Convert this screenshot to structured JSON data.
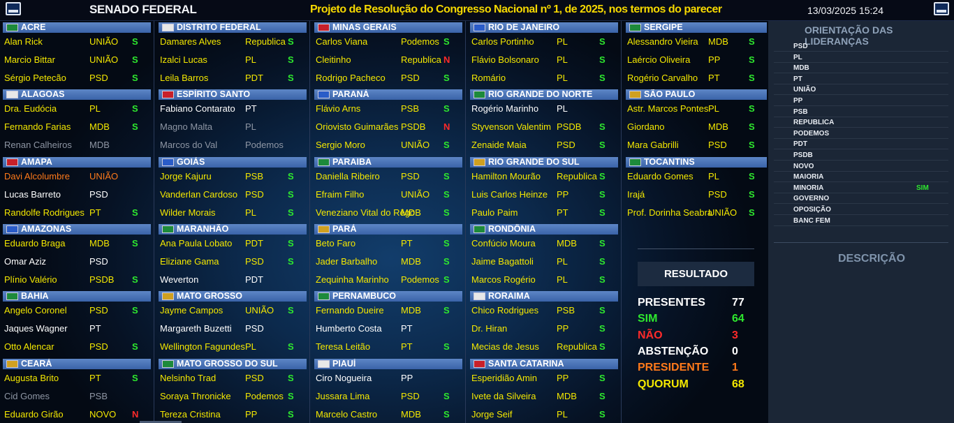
{
  "header": {
    "title_left": "SENADO FEDERAL",
    "title_center": "Projeto de Resolução do Congresso Nacional nº 1, de 2025, nos termos do parecer",
    "datetime": "13/03/2025 15:24"
  },
  "colors": {
    "yes": "#f4e800",
    "no_vote": "#ffffff",
    "absent": "#8e96a4",
    "president": "#ff7a1a",
    "vote_sim": "#2ee82e",
    "vote_nao": "#ff2a2a"
  },
  "columns": [
    {
      "blocks": [
        {
          "state": "ACRE",
          "senators": [
            {
              "name": "Alan Rick",
              "party": "UNIÃO",
              "vote": "S",
              "status": "yes"
            },
            {
              "name": "Marcio Bittar",
              "party": "UNIÃO",
              "vote": "S",
              "status": "yes"
            },
            {
              "name": "Sérgio Petecão",
              "party": "PSD",
              "vote": "S",
              "status": "yes"
            }
          ]
        },
        {
          "state": "ALAGOAS",
          "senators": [
            {
              "name": "Dra. Eudócia",
              "party": "PL",
              "vote": "S",
              "status": "yes"
            },
            {
              "name": "Fernando Farias",
              "party": "MDB",
              "vote": "S",
              "status": "yes"
            },
            {
              "name": "Renan Calheiros",
              "party": "MDB",
              "vote": "",
              "status": "absent"
            }
          ]
        },
        {
          "state": "AMAPA",
          "senators": [
            {
              "name": "Davi Alcolumbre",
              "party": "UNIÃO",
              "vote": "",
              "status": "president"
            },
            {
              "name": "Lucas Barreto",
              "party": "PSD",
              "vote": "",
              "status": "white"
            },
            {
              "name": "Randolfe Rodrigues",
              "party": "PT",
              "vote": "S",
              "status": "yes"
            }
          ]
        },
        {
          "state": "AMAZONAS",
          "senators": [
            {
              "name": "Eduardo Braga",
              "party": "MDB",
              "vote": "S",
              "status": "yes"
            },
            {
              "name": "Omar Aziz",
              "party": "PSD",
              "vote": "",
              "status": "white"
            },
            {
              "name": "Plínio Valério",
              "party": "PSDB",
              "vote": "S",
              "status": "yes"
            }
          ]
        },
        {
          "state": "BAHIA",
          "senators": [
            {
              "name": "Angelo Coronel",
              "party": "PSD",
              "vote": "S",
              "status": "yes"
            },
            {
              "name": "Jaques Wagner",
              "party": "PT",
              "vote": "",
              "status": "white"
            },
            {
              "name": "Otto Alencar",
              "party": "PSD",
              "vote": "S",
              "status": "yes"
            }
          ]
        },
        {
          "state": "CEARÁ",
          "senators": [
            {
              "name": "Augusta Brito",
              "party": "PT",
              "vote": "S",
              "status": "yes"
            },
            {
              "name": "Cid Gomes",
              "party": "PSB",
              "vote": "",
              "status": "absent"
            },
            {
              "name": "Eduardo Girão",
              "party": "NOVO",
              "vote": "N",
              "status": "yes"
            }
          ]
        }
      ]
    },
    {
      "blocks": [
        {
          "state": "DISTRITO FEDERAL",
          "senators": [
            {
              "name": "Damares Alves",
              "party": "Republica",
              "vote": "S",
              "status": "yes"
            },
            {
              "name": "Izalci Lucas",
              "party": "PL",
              "vote": "S",
              "status": "yes"
            },
            {
              "name": "Leila Barros",
              "party": "PDT",
              "vote": "S",
              "status": "yes"
            }
          ]
        },
        {
          "state": "ESPÍRITO SANTO",
          "senators": [
            {
              "name": "Fabiano Contarato",
              "party": "PT",
              "vote": "",
              "status": "white"
            },
            {
              "name": "Magno Malta",
              "party": "PL",
              "vote": "",
              "status": "absent"
            },
            {
              "name": "Marcos do Val",
              "party": "Podemos",
              "vote": "",
              "status": "absent"
            }
          ]
        },
        {
          "state": "GOIÁS",
          "senators": [
            {
              "name": "Jorge Kajuru",
              "party": "PSB",
              "vote": "S",
              "status": "yes"
            },
            {
              "name": "Vanderlan Cardoso",
              "party": "PSD",
              "vote": "S",
              "status": "yes"
            },
            {
              "name": "Wilder Morais",
              "party": "PL",
              "vote": "S",
              "status": "yes"
            }
          ]
        },
        {
          "state": "MARANHÃO",
          "senators": [
            {
              "name": "Ana Paula Lobato",
              "party": "PDT",
              "vote": "S",
              "status": "yes"
            },
            {
              "name": "Eliziane Gama",
              "party": "PSD",
              "vote": "S",
              "status": "yes"
            },
            {
              "name": "Weverton",
              "party": "PDT",
              "vote": "",
              "status": "white"
            }
          ]
        },
        {
          "state": "MATO GROSSO",
          "senators": [
            {
              "name": "Jayme Campos",
              "party": "UNIÃO",
              "vote": "S",
              "status": "yes"
            },
            {
              "name": "Margareth Buzetti",
              "party": "PSD",
              "vote": "",
              "status": "white"
            },
            {
              "name": "Wellington Fagundes",
              "party": "PL",
              "vote": "S",
              "status": "yes"
            }
          ]
        },
        {
          "state": "MATO GROSSO DO SUL",
          "senators": [
            {
              "name": "Nelsinho Trad",
              "party": "PSD",
              "vote": "S",
              "status": "yes"
            },
            {
              "name": "Soraya Thronicke",
              "party": "Podemos",
              "vote": "S",
              "status": "yes"
            },
            {
              "name": "Tereza Cristina",
              "party": "PP",
              "vote": "S",
              "status": "yes"
            }
          ]
        }
      ]
    },
    {
      "blocks": [
        {
          "state": "MINAS GERAIS",
          "senators": [
            {
              "name": "Carlos Viana",
              "party": "Podemos",
              "vote": "S",
              "status": "yes"
            },
            {
              "name": "Cleitinho",
              "party": "Republica",
              "vote": "N",
              "status": "yes"
            },
            {
              "name": "Rodrigo Pacheco",
              "party": "PSD",
              "vote": "S",
              "status": "yes"
            }
          ]
        },
        {
          "state": "PARANÁ",
          "senators": [
            {
              "name": "Flávio Arns",
              "party": "PSB",
              "vote": "S",
              "status": "yes"
            },
            {
              "name": "Oriovisto Guimarães",
              "party": "PSDB",
              "vote": "N",
              "status": "yes"
            },
            {
              "name": "Sergio Moro",
              "party": "UNIÃO",
              "vote": "S",
              "status": "yes"
            }
          ]
        },
        {
          "state": "PARAIBA",
          "senators": [
            {
              "name": "Daniella Ribeiro",
              "party": "PSD",
              "vote": "S",
              "status": "yes"
            },
            {
              "name": "Efraim Filho",
              "party": "UNIÃO",
              "vote": "S",
              "status": "yes"
            },
            {
              "name": "Veneziano Vital do Rêgo",
              "party": "MDB",
              "vote": "S",
              "status": "yes"
            }
          ]
        },
        {
          "state": "PARÁ",
          "senators": [
            {
              "name": "Beto Faro",
              "party": "PT",
              "vote": "S",
              "status": "yes"
            },
            {
              "name": "Jader Barbalho",
              "party": "MDB",
              "vote": "S",
              "status": "yes"
            },
            {
              "name": "Zequinha Marinho",
              "party": "Podemos",
              "vote": "S",
              "status": "yes"
            }
          ]
        },
        {
          "state": "PERNAMBUCO",
          "senators": [
            {
              "name": "Fernando Dueire",
              "party": "MDB",
              "vote": "S",
              "status": "yes"
            },
            {
              "name": "Humberto Costa",
              "party": "PT",
              "vote": "",
              "status": "white"
            },
            {
              "name": "Teresa Leitão",
              "party": "PT",
              "vote": "S",
              "status": "yes"
            }
          ]
        },
        {
          "state": "PIAUÍ",
          "senators": [
            {
              "name": "Ciro Nogueira",
              "party": "PP",
              "vote": "",
              "status": "white"
            },
            {
              "name": "Jussara Lima",
              "party": "PSD",
              "vote": "S",
              "status": "yes"
            },
            {
              "name": "Marcelo Castro",
              "party": "MDB",
              "vote": "S",
              "status": "yes"
            }
          ]
        }
      ]
    },
    {
      "blocks": [
        {
          "state": "RIO DE JANEIRO",
          "senators": [
            {
              "name": "Carlos Portinho",
              "party": "PL",
              "vote": "S",
              "status": "yes"
            },
            {
              "name": "Flávio Bolsonaro",
              "party": "PL",
              "vote": "S",
              "status": "yes"
            },
            {
              "name": "Romário",
              "party": "PL",
              "vote": "S",
              "status": "yes"
            }
          ]
        },
        {
          "state": "RIO GRANDE DO NORTE",
          "senators": [
            {
              "name": "Rogério Marinho",
              "party": "PL",
              "vote": "",
              "status": "white"
            },
            {
              "name": "Styvenson Valentim",
              "party": "PSDB",
              "vote": "S",
              "status": "yes"
            },
            {
              "name": "Zenaide Maia",
              "party": "PSD",
              "vote": "S",
              "status": "yes"
            }
          ]
        },
        {
          "state": "RIO GRANDE DO SUL",
          "senators": [
            {
              "name": "Hamilton Mourão",
              "party": "Republica",
              "vote": "S",
              "status": "yes"
            },
            {
              "name": "Luis Carlos Heinze",
              "party": "PP",
              "vote": "S",
              "status": "yes"
            },
            {
              "name": "Paulo Paim",
              "party": "PT",
              "vote": "S",
              "status": "yes"
            }
          ]
        },
        {
          "state": "RONDÔNIA",
          "senators": [
            {
              "name": "Confúcio Moura",
              "party": "MDB",
              "vote": "S",
              "status": "yes"
            },
            {
              "name": "Jaime Bagattoli",
              "party": "PL",
              "vote": "S",
              "status": "yes"
            },
            {
              "name": "Marcos Rogério",
              "party": "PL",
              "vote": "S",
              "status": "yes"
            }
          ]
        },
        {
          "state": "RORAIMA",
          "senators": [
            {
              "name": "Chico Rodrigues",
              "party": "PSB",
              "vote": "S",
              "status": "yes"
            },
            {
              "name": "Dr. Hiran",
              "party": "PP",
              "vote": "S",
              "status": "yes"
            },
            {
              "name": "Mecias de Jesus",
              "party": "Republica",
              "vote": "S",
              "status": "yes"
            }
          ]
        },
        {
          "state": "SANTA CATARINA",
          "senators": [
            {
              "name": "Esperidião Amin",
              "party": "PP",
              "vote": "S",
              "status": "yes"
            },
            {
              "name": "Ivete da Silveira",
              "party": "MDB",
              "vote": "S",
              "status": "yes"
            },
            {
              "name": "Jorge Seif",
              "party": "PL",
              "vote": "S",
              "status": "yes"
            }
          ]
        }
      ]
    },
    {
      "blocks": [
        {
          "state": "SERGIPE",
          "senators": [
            {
              "name": "Alessandro Vieira",
              "party": "MDB",
              "vote": "S",
              "status": "yes"
            },
            {
              "name": "Laércio Oliveira",
              "party": "PP",
              "vote": "S",
              "status": "yes"
            },
            {
              "name": "Rogério Carvalho",
              "party": "PT",
              "vote": "S",
              "status": "yes"
            }
          ]
        },
        {
          "state": "SÃO PAULO",
          "senators": [
            {
              "name": "Astr. Marcos Pontes",
              "party": "PL",
              "vote": "S",
              "status": "yes"
            },
            {
              "name": "Giordano",
              "party": "MDB",
              "vote": "S",
              "status": "yes"
            },
            {
              "name": "Mara Gabrilli",
              "party": "PSD",
              "vote": "S",
              "status": "yes"
            }
          ]
        },
        {
          "state": "TOCANTINS",
          "senators": [
            {
              "name": "Eduardo Gomes",
              "party": "PL",
              "vote": "S",
              "status": "yes"
            },
            {
              "name": "Irajá",
              "party": "PSD",
              "vote": "S",
              "status": "yes"
            },
            {
              "name": "Prof. Dorinha Seabra",
              "party": "UNIÃO",
              "vote": "S",
              "status": "yes"
            }
          ]
        }
      ]
    }
  ],
  "result": {
    "title": "RESULTADO",
    "rows": [
      {
        "label": "PRESENTES",
        "value": "77",
        "color": "#ffffff"
      },
      {
        "label": "SIM",
        "value": "64",
        "color": "#2ee82e"
      },
      {
        "label": "NÃO",
        "value": "3",
        "color": "#ff2a2a"
      },
      {
        "label": "ABSTENÇÃO",
        "value": "0",
        "color": "#ffffff"
      },
      {
        "label": "PRESIDENTE",
        "value": "1",
        "color": "#ff7a1a"
      },
      {
        "label": "QUORUM",
        "value": "68",
        "color": "#f4e800"
      }
    ]
  },
  "leadership": {
    "title": "ORIENTAÇÃO DAS LIDERANÇAS",
    "rows": [
      {
        "party": "PSD",
        "vote": ""
      },
      {
        "party": "PL",
        "vote": ""
      },
      {
        "party": "MDB",
        "vote": ""
      },
      {
        "party": "PT",
        "vote": ""
      },
      {
        "party": "UNIÃO",
        "vote": ""
      },
      {
        "party": "PP",
        "vote": ""
      },
      {
        "party": "PSB",
        "vote": ""
      },
      {
        "party": "REPUBLICA",
        "vote": ""
      },
      {
        "party": "PODEMOS",
        "vote": ""
      },
      {
        "party": "PDT",
        "vote": ""
      },
      {
        "party": "PSDB",
        "vote": ""
      },
      {
        "party": "NOVO",
        "vote": ""
      },
      {
        "party": "MAIORIA",
        "vote": ""
      },
      {
        "party": "MINORIA",
        "vote": "SIM"
      },
      {
        "party": "GOVERNO",
        "vote": ""
      },
      {
        "party": "OPOSIÇÃO",
        "vote": ""
      },
      {
        "party": "BANC FEM",
        "vote": ""
      }
    ]
  },
  "description": {
    "title": "DESCRIÇÃO"
  }
}
